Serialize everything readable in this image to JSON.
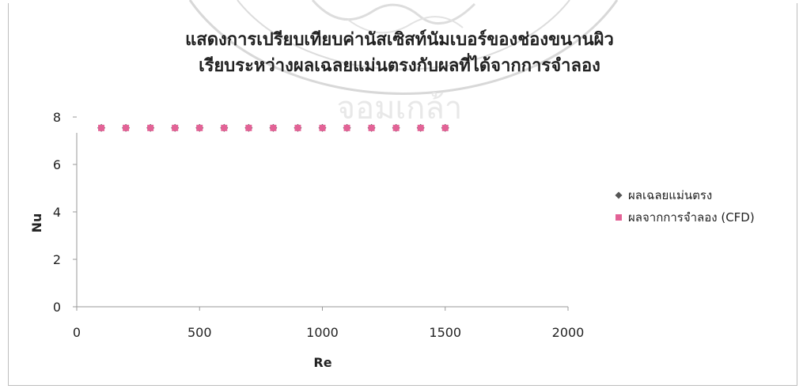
{
  "chart_data": {
    "type": "scatter",
    "title_line1": "แสดงการเปรียบเทียบค่านัสเซิสท์นัมเบอร์ของช่องขนานผิว",
    "title_line2": "เรียบระหว่างผลเฉลยแม่นตรงกับผลที่ได้จากการจำลอง",
    "xlabel": "Re",
    "ylabel": "Nu",
    "xlim": [
      0,
      2000
    ],
    "ylim": [
      0,
      8
    ],
    "xticks": [
      "0",
      "500",
      "1000",
      "1500",
      "2000"
    ],
    "yticks": [
      "0",
      "2",
      "4",
      "6",
      "8"
    ],
    "legend_position": "right",
    "series": [
      {
        "name": "ผลเฉลยแม่นตรง",
        "marker": "diamond",
        "color": "#555555",
        "x": [
          100,
          200,
          300,
          400,
          500,
          600,
          700,
          800,
          900,
          1000,
          1100,
          1200,
          1300,
          1400,
          1500
        ],
        "y": [
          7.54,
          7.54,
          7.54,
          7.54,
          7.54,
          7.54,
          7.54,
          7.54,
          7.54,
          7.54,
          7.54,
          7.54,
          7.54,
          7.54,
          7.54
        ]
      },
      {
        "name": "ผลจากการจำลอง (CFD)",
        "marker": "square",
        "color": "#e36296",
        "x": [
          100,
          200,
          300,
          400,
          500,
          600,
          700,
          800,
          900,
          1000,
          1100,
          1200,
          1300,
          1400,
          1500
        ],
        "y": [
          7.54,
          7.54,
          7.54,
          7.54,
          7.54,
          7.54,
          7.54,
          7.54,
          7.54,
          7.54,
          7.54,
          7.54,
          7.54,
          7.54,
          7.54
        ]
      }
    ]
  }
}
